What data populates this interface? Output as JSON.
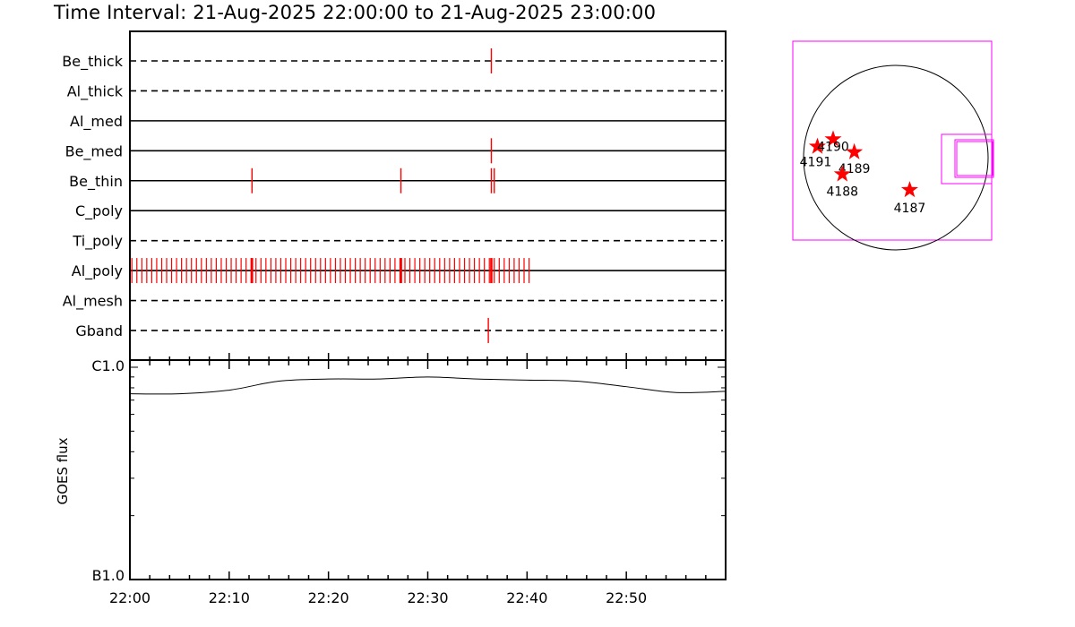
{
  "title": "Time Interval: 21-Aug-2025 22:00:00 to 21-Aug-2025 23:00:00",
  "colors": {
    "tick_red": "#ff0000",
    "star_red": "#ff0000",
    "fov_magenta": "#ff00ff",
    "axis": "#000000"
  },
  "chart_data": [
    {
      "type": "timeline",
      "name": "filter_observations",
      "x_range": [
        "22:00",
        "23:00"
      ],
      "x_ticks": [
        "22:00",
        "22:10",
        "22:20",
        "22:30",
        "22:40",
        "22:50"
      ],
      "rows": [
        {
          "label": "Be_thick",
          "style": "dashed",
          "marks": [
            "22:36.4"
          ]
        },
        {
          "label": "Al_thick",
          "style": "dashed",
          "marks": []
        },
        {
          "label": "Al_med",
          "style": "solid",
          "marks": []
        },
        {
          "label": "Be_med",
          "style": "solid",
          "marks": [
            "22:36.4"
          ]
        },
        {
          "label": "Be_thin",
          "style": "solid",
          "marks": [
            "22:12.3",
            "22:27.3",
            "22:36.4",
            "22:36.7"
          ]
        },
        {
          "label": "C_poly",
          "style": "solid",
          "marks": []
        },
        {
          "label": "Ti_poly",
          "style": "dashed",
          "marks": []
        },
        {
          "label": "Al_poly",
          "style": "solid",
          "marks_dense": {
            "start": "22:00.2",
            "end": "22:40.3",
            "step_min": 0.5
          }
        },
        {
          "label": "Al_mesh",
          "style": "dashed",
          "marks": []
        },
        {
          "label": "Gband",
          "style": "dashed",
          "marks": [
            "22:36.1"
          ]
        }
      ]
    },
    {
      "type": "line",
      "name": "goes_flux",
      "ylabel": "GOES flux",
      "yscale": "log",
      "y_ticks": [
        "B1.0",
        "C1.0"
      ],
      "ylim": [
        1e-07,
        1e-06
      ],
      "x_range": [
        "22:00",
        "23:00"
      ],
      "x_ticks": [
        "22:00",
        "22:10",
        "22:20",
        "22:30",
        "22:40",
        "22:50"
      ],
      "series": [
        {
          "x_min": [
            0,
            5,
            10,
            15,
            20,
            25,
            30,
            35,
            40,
            45,
            50,
            55,
            60
          ],
          "y": [
            7.5e-07,
            7.5e-07,
            7.8e-07,
            8.6e-07,
            8.8e-07,
            8.8e-07,
            9e-07,
            8.8e-07,
            8.7e-07,
            8.6e-07,
            8.1e-07,
            7.6e-07,
            7.7e-07
          ]
        }
      ]
    },
    {
      "type": "scatter",
      "name": "active_regions_map",
      "points": [
        {
          "label": "4191",
          "x": -0.85,
          "y": 0.12
        },
        {
          "label": "4190",
          "x": -0.68,
          "y": 0.2
        },
        {
          "label": "4189",
          "x": -0.45,
          "y": 0.06
        },
        {
          "label": "4188",
          "x": -0.58,
          "y": -0.18
        },
        {
          "label": "4187",
          "x": 0.15,
          "y": -0.35
        }
      ]
    }
  ]
}
